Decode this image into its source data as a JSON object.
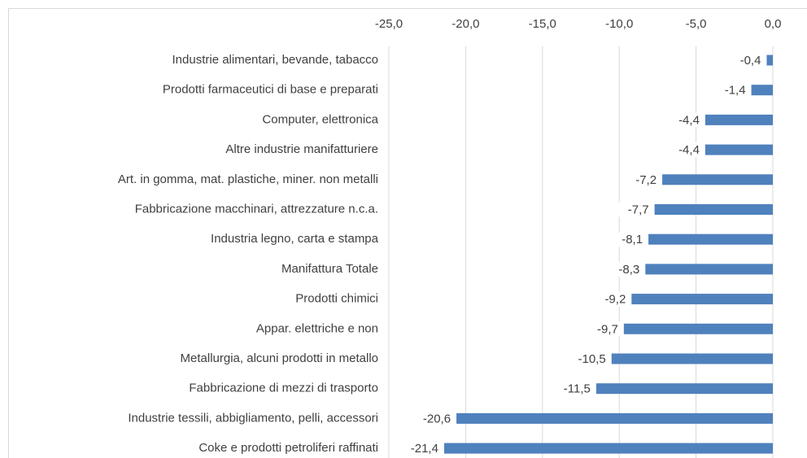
{
  "chart_data": {
    "type": "bar",
    "orientation": "horizontal",
    "categories": [
      "Industrie alimentari, bevande, tabacco",
      "Prodotti farmaceutici di base e preparati",
      "Computer, elettronica",
      "Altre industrie manifatturiere",
      "Art. in gomma, mat. plastiche, miner. non metalli",
      "Fabbricazione macchinari, attrezzature n.c.a.",
      "Industria legno, carta e stampa",
      "Manifattura Totale",
      "Prodotti chimici",
      "Appar. elettriche e non",
      "Metallurgia, alcuni prodotti in metallo",
      "Fabbricazione di mezzi di trasporto",
      "Industrie tessili, abbigliamento, pelli, accessori",
      "Coke e prodotti petroliferi raffinati"
    ],
    "values": [
      -0.4,
      -1.4,
      -4.4,
      -4.4,
      -7.2,
      -7.7,
      -8.1,
      -8.3,
      -9.2,
      -9.7,
      -10.5,
      -11.5,
      -20.6,
      -21.4
    ],
    "value_labels": [
      "-0,4",
      "-1,4",
      "-4,4",
      "-4,4",
      "-7,2",
      "-7,7",
      "-8,1",
      "-8,3",
      "-9,2",
      "-9,7",
      "-10,5",
      "-11,5",
      "-20,6",
      "-21,4"
    ],
    "color": "#4f81bd",
    "xlim": [
      -25,
      0
    ],
    "xticks": [
      {
        "value": -25,
        "label": "-25,0"
      },
      {
        "value": -20,
        "label": "-20,0"
      },
      {
        "value": -15,
        "label": "-15,0"
      },
      {
        "value": -10,
        "label": "-10,0"
      },
      {
        "value": -5,
        "label": "-5,0"
      },
      {
        "value": 0,
        "label": "0,0"
      }
    ],
    "grid": true
  }
}
